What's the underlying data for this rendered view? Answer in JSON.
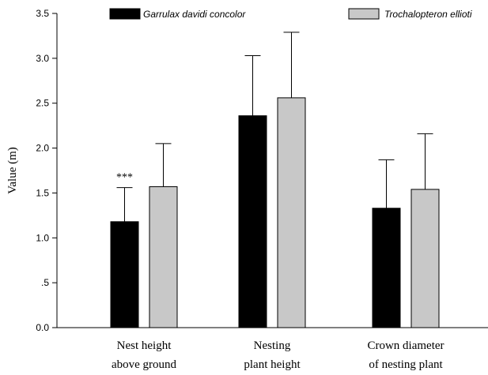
{
  "chart_data": {
    "type": "bar",
    "title": "",
    "xlabel": "",
    "ylabel": "Value (m)",
    "ylim": [
      0,
      3.5
    ],
    "yticks": [
      {
        "value": 0.0,
        "label": "0.0"
      },
      {
        "value": 0.5,
        "label": ".5"
      },
      {
        "value": 1.0,
        "label": "1.0"
      },
      {
        "value": 1.5,
        "label": "1.5"
      },
      {
        "value": 2.0,
        "label": "2.0"
      },
      {
        "value": 2.5,
        "label": "2.5"
      },
      {
        "value": 3.0,
        "label": "3.0"
      },
      {
        "value": 3.5,
        "label": "3.5"
      }
    ],
    "categories": [
      [
        "Nest height",
        "above ground"
      ],
      [
        "Nesting",
        "plant height"
      ],
      [
        "Crown diameter",
        "of nesting plant"
      ]
    ],
    "series": [
      {
        "name": "Garrulax davidi concolor",
        "color": "#000000",
        "values": [
          1.18,
          2.36,
          1.33
        ],
        "errors": [
          0.38,
          0.67,
          0.54
        ]
      },
      {
        "name": "Trochalopteron ellioti",
        "color": "#c8c8c8",
        "values": [
          1.57,
          2.56,
          1.54
        ],
        "errors": [
          0.48,
          0.73,
          0.62
        ]
      }
    ],
    "annotations": [
      {
        "category": 0,
        "series": 0,
        "text": "***"
      }
    ],
    "grid": false,
    "legend_position": "top"
  }
}
